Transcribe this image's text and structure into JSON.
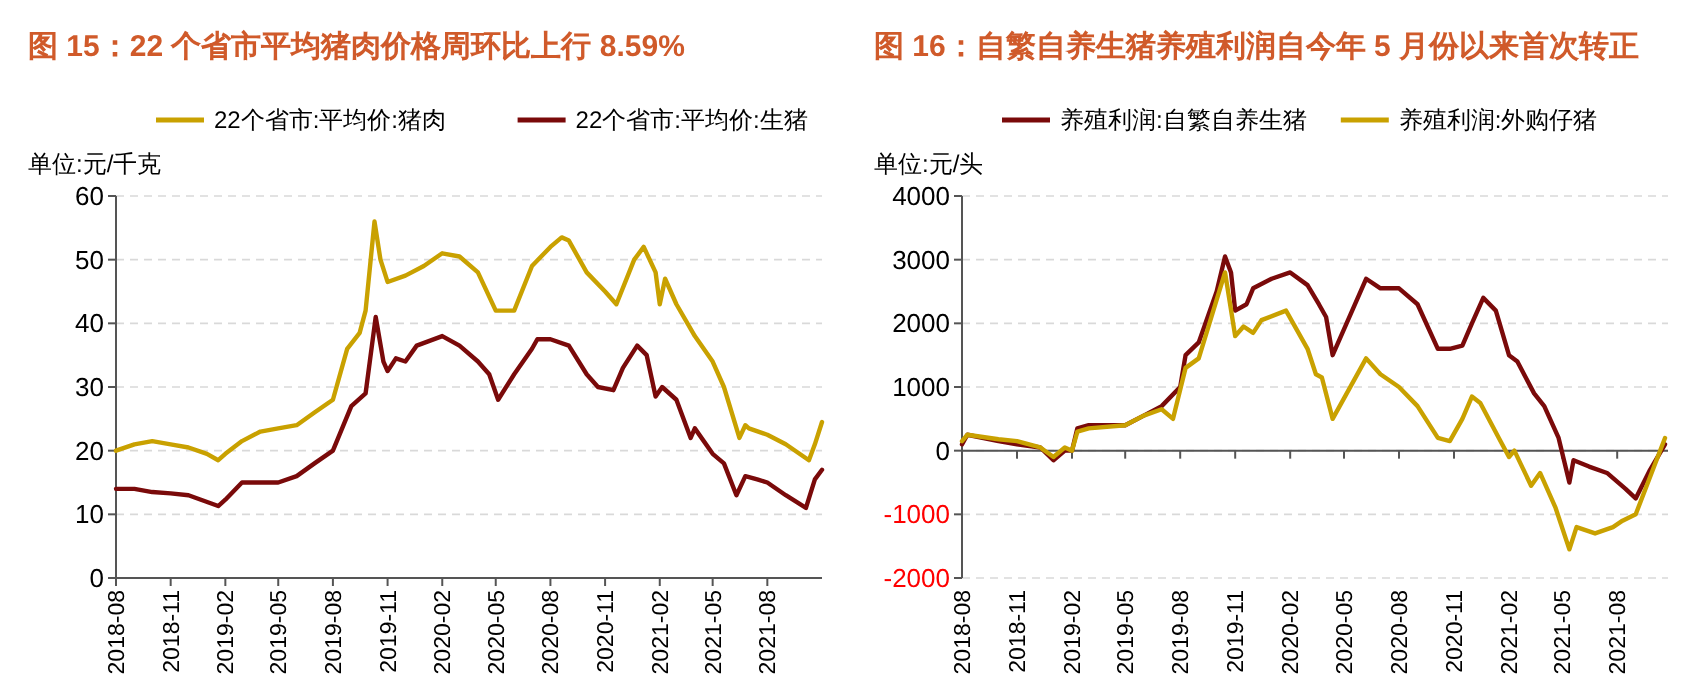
{
  "chart_data": [
    {
      "type": "line",
      "title": "图 15：22 个省市平均猪肉价格周环比上行 8.59%",
      "ylabel": "单位:元/千克",
      "legend": "top",
      "grid": "y",
      "xlim": [
        "2018-08",
        "2021-11"
      ],
      "xticks": [
        "2018-08",
        "2018-11",
        "2019-02",
        "2019-05",
        "2019-08",
        "2019-11",
        "2020-02",
        "2020-05",
        "2020-08",
        "2020-11",
        "2021-02",
        "2021-05",
        "2021-08"
      ],
      "ylim": [
        0,
        60
      ],
      "yticks": [
        0,
        10,
        20,
        30,
        40,
        50,
        60
      ],
      "series": [
        {
          "name": "22个省市:平均价:猪肉",
          "color": "#c9a100",
          "x": [
            "2018-08-01",
            "2018-09-01",
            "2018-10-01",
            "2018-11-01",
            "2018-12-01",
            "2019-01-01",
            "2019-01-20",
            "2019-02-01",
            "2019-03-01",
            "2019-04-01",
            "2019-05-01",
            "2019-06-01",
            "2019-07-01",
            "2019-08-01",
            "2019-08-25",
            "2019-09-15",
            "2019-09-25",
            "2019-10-10",
            "2019-10-20",
            "2019-11-01",
            "2019-12-01",
            "2020-01-01",
            "2020-02-01",
            "2020-03-01",
            "2020-04-01",
            "2020-05-01",
            "2020-06-01",
            "2020-07-01",
            "2020-08-01",
            "2020-08-20",
            "2020-09-01",
            "2020-10-01",
            "2020-11-01",
            "2020-11-20",
            "2020-12-20",
            "2021-01-05",
            "2021-01-25",
            "2021-02-01",
            "2021-02-10",
            "2021-03-01",
            "2021-04-01",
            "2021-05-01",
            "2021-05-20",
            "2021-06-15",
            "2021-06-25",
            "2021-07-01",
            "2021-08-01",
            "2021-09-01",
            "2021-10-10",
            "2021-10-20",
            "2021-11-01"
          ],
          "values": [
            20,
            21,
            21.5,
            21,
            20.5,
            19.5,
            18.5,
            19.5,
            21.5,
            23,
            23.5,
            24,
            26,
            28,
            36,
            38.5,
            42,
            56,
            50,
            46.5,
            47.5,
            49,
            51,
            50.5,
            48,
            42,
            42,
            49,
            52,
            53.5,
            53,
            48,
            45,
            43,
            50,
            52,
            48,
            43,
            47,
            43,
            38,
            34,
            30,
            22,
            24,
            23.5,
            22.5,
            21,
            18.5,
            21,
            24.5
          ]
        },
        {
          "name": "22个省市:平均价:生猪",
          "color": "#7a0a0a",
          "x": [
            "2018-08-01",
            "2018-09-01",
            "2018-10-01",
            "2018-11-01",
            "2018-12-01",
            "2019-01-20",
            "2019-02-01",
            "2019-03-01",
            "2019-04-01",
            "2019-05-01",
            "2019-06-01",
            "2019-07-01",
            "2019-08-01",
            "2019-09-01",
            "2019-09-25",
            "2019-10-12",
            "2019-10-25",
            "2019-11-01",
            "2019-11-15",
            "2019-12-01",
            "2019-12-20",
            "2020-02-01",
            "2020-03-01",
            "2020-04-01",
            "2020-04-20",
            "2020-05-05",
            "2020-06-01",
            "2020-07-01",
            "2020-07-10",
            "2020-08-01",
            "2020-09-01",
            "2020-10-01",
            "2020-10-20",
            "2020-11-15",
            "2020-12-01",
            "2020-12-25",
            "2021-01-10",
            "2021-01-25",
            "2021-02-05",
            "2021-03-01",
            "2021-03-25",
            "2021-04-01",
            "2021-05-01",
            "2021-05-20",
            "2021-06-10",
            "2021-06-25",
            "2021-07-15",
            "2021-08-01",
            "2021-09-01",
            "2021-10-05",
            "2021-10-20",
            "2021-11-01"
          ],
          "values": [
            14,
            14,
            13.5,
            13.3,
            13,
            11.3,
            12.3,
            15,
            15,
            15,
            16,
            18,
            20,
            27,
            29,
            41,
            34,
            32.5,
            34.5,
            34,
            36.5,
            38,
            36.5,
            34,
            32,
            28,
            32,
            36,
            37.5,
            37.5,
            36.5,
            32,
            30,
            29.5,
            33,
            36.5,
            35,
            28.5,
            30,
            28,
            22,
            23.5,
            19.5,
            18,
            13,
            16,
            15.5,
            15,
            13,
            11,
            15.5,
            17
          ]
        }
      ]
    },
    {
      "type": "line",
      "title": "图 16：自繁自养生猪养殖利润自今年 5 月份以来首次转正",
      "ylabel": "单位:元/头",
      "legend": "top",
      "grid": "y",
      "xlim": [
        "2018-08",
        "2021-10-25"
      ],
      "xticks": [
        "2018-08",
        "2018-11",
        "2019-02",
        "2019-05",
        "2019-08",
        "2019-11",
        "2020-02",
        "2020-05",
        "2020-08",
        "2020-11",
        "2021-02",
        "2021-05",
        "2021-08"
      ],
      "ylim": [
        -2000,
        4000
      ],
      "yticks": [
        -2000,
        -1000,
        0,
        1000,
        2000,
        3000,
        4000
      ],
      "series": [
        {
          "name": "养殖利润:自繁自养生猪",
          "color": "#7a0a0a",
          "x": [
            "2018-08-01",
            "2018-08-10",
            "2018-10-01",
            "2018-11-01",
            "2018-12-10",
            "2019-01-01",
            "2019-01-20",
            "2019-02-01",
            "2019-02-10",
            "2019-03-01",
            "2019-04-01",
            "2019-05-01",
            "2019-06-01",
            "2019-07-01",
            "2019-08-01",
            "2019-08-10",
            "2019-09-01",
            "2019-10-01",
            "2019-10-15",
            "2019-10-25",
            "2019-11-01",
            "2019-11-20",
            "2019-12-01",
            "2020-01-01",
            "2020-02-01",
            "2020-03-01",
            "2020-03-20",
            "2020-04-01",
            "2020-04-12",
            "2020-06-07",
            "2020-07-01",
            "2020-08-01",
            "2020-09-01",
            "2020-10-05",
            "2020-10-25",
            "2020-11-15",
            "2020-12-01",
            "2020-12-20",
            "2021-01-10",
            "2021-02-01",
            "2021-02-15",
            "2021-03-15",
            "2021-04-01",
            "2021-04-25",
            "2021-05-13",
            "2021-05-20",
            "2021-06-15",
            "2021-07-15",
            "2021-08-15",
            "2021-09-01",
            "2021-09-25",
            "2021-10-20"
          ],
          "values": [
            100,
            250,
            150,
            100,
            50,
            -150,
            0,
            0,
            350,
            400,
            400,
            400,
            550,
            700,
            1000,
            1500,
            1700,
            2500,
            3050,
            2800,
            2200,
            2300,
            2550,
            2700,
            2800,
            2600,
            2300,
            2100,
            1500,
            2700,
            2550,
            2550,
            2300,
            1600,
            1600,
            1650,
            2000,
            2400,
            2200,
            1500,
            1400,
            900,
            700,
            200,
            -500,
            -150,
            -250,
            -350,
            -600,
            -750,
            -300,
            100
          ]
        },
        {
          "name": "养殖利润:外购仔猪",
          "color": "#c9a100",
          "x": [
            "2018-08-01",
            "2018-08-10",
            "2018-10-01",
            "2018-11-01",
            "2018-12-10",
            "2019-01-01",
            "2019-01-20",
            "2019-02-01",
            "2019-02-10",
            "2019-03-01",
            "2019-05-01",
            "2019-06-01",
            "2019-07-01",
            "2019-07-20",
            "2019-08-10",
            "2019-09-01",
            "2019-10-15",
            "2019-11-01",
            "2019-11-15",
            "2019-12-01",
            "2019-12-15",
            "2020-01-25",
            "2020-03-01",
            "2020-03-15",
            "2020-03-25",
            "2020-04-12",
            "2020-06-07",
            "2020-07-01",
            "2020-08-01",
            "2020-09-01",
            "2020-10-05",
            "2020-10-25",
            "2020-11-15",
            "2020-12-01",
            "2020-12-15",
            "2021-01-15",
            "2021-02-01",
            "2021-02-10",
            "2021-03-10",
            "2021-03-25",
            "2021-04-20",
            "2021-05-13",
            "2021-05-25",
            "2021-06-25",
            "2021-07-25",
            "2021-08-10",
            "2021-09-01",
            "2021-10-20"
          ],
          "values": [
            150,
            250,
            180,
            150,
            50,
            -100,
            50,
            0,
            300,
            350,
            400,
            550,
            650,
            500,
            1300,
            1450,
            2800,
            1800,
            1950,
            1850,
            2050,
            2200,
            1600,
            1200,
            1150,
            500,
            1450,
            1200,
            1000,
            700,
            200,
            150,
            500,
            850,
            750,
            200,
            -100,
            0,
            -550,
            -350,
            -900,
            -1550,
            -1200,
            -1300,
            -1200,
            -1100,
            -1000,
            200
          ]
        }
      ]
    }
  ]
}
